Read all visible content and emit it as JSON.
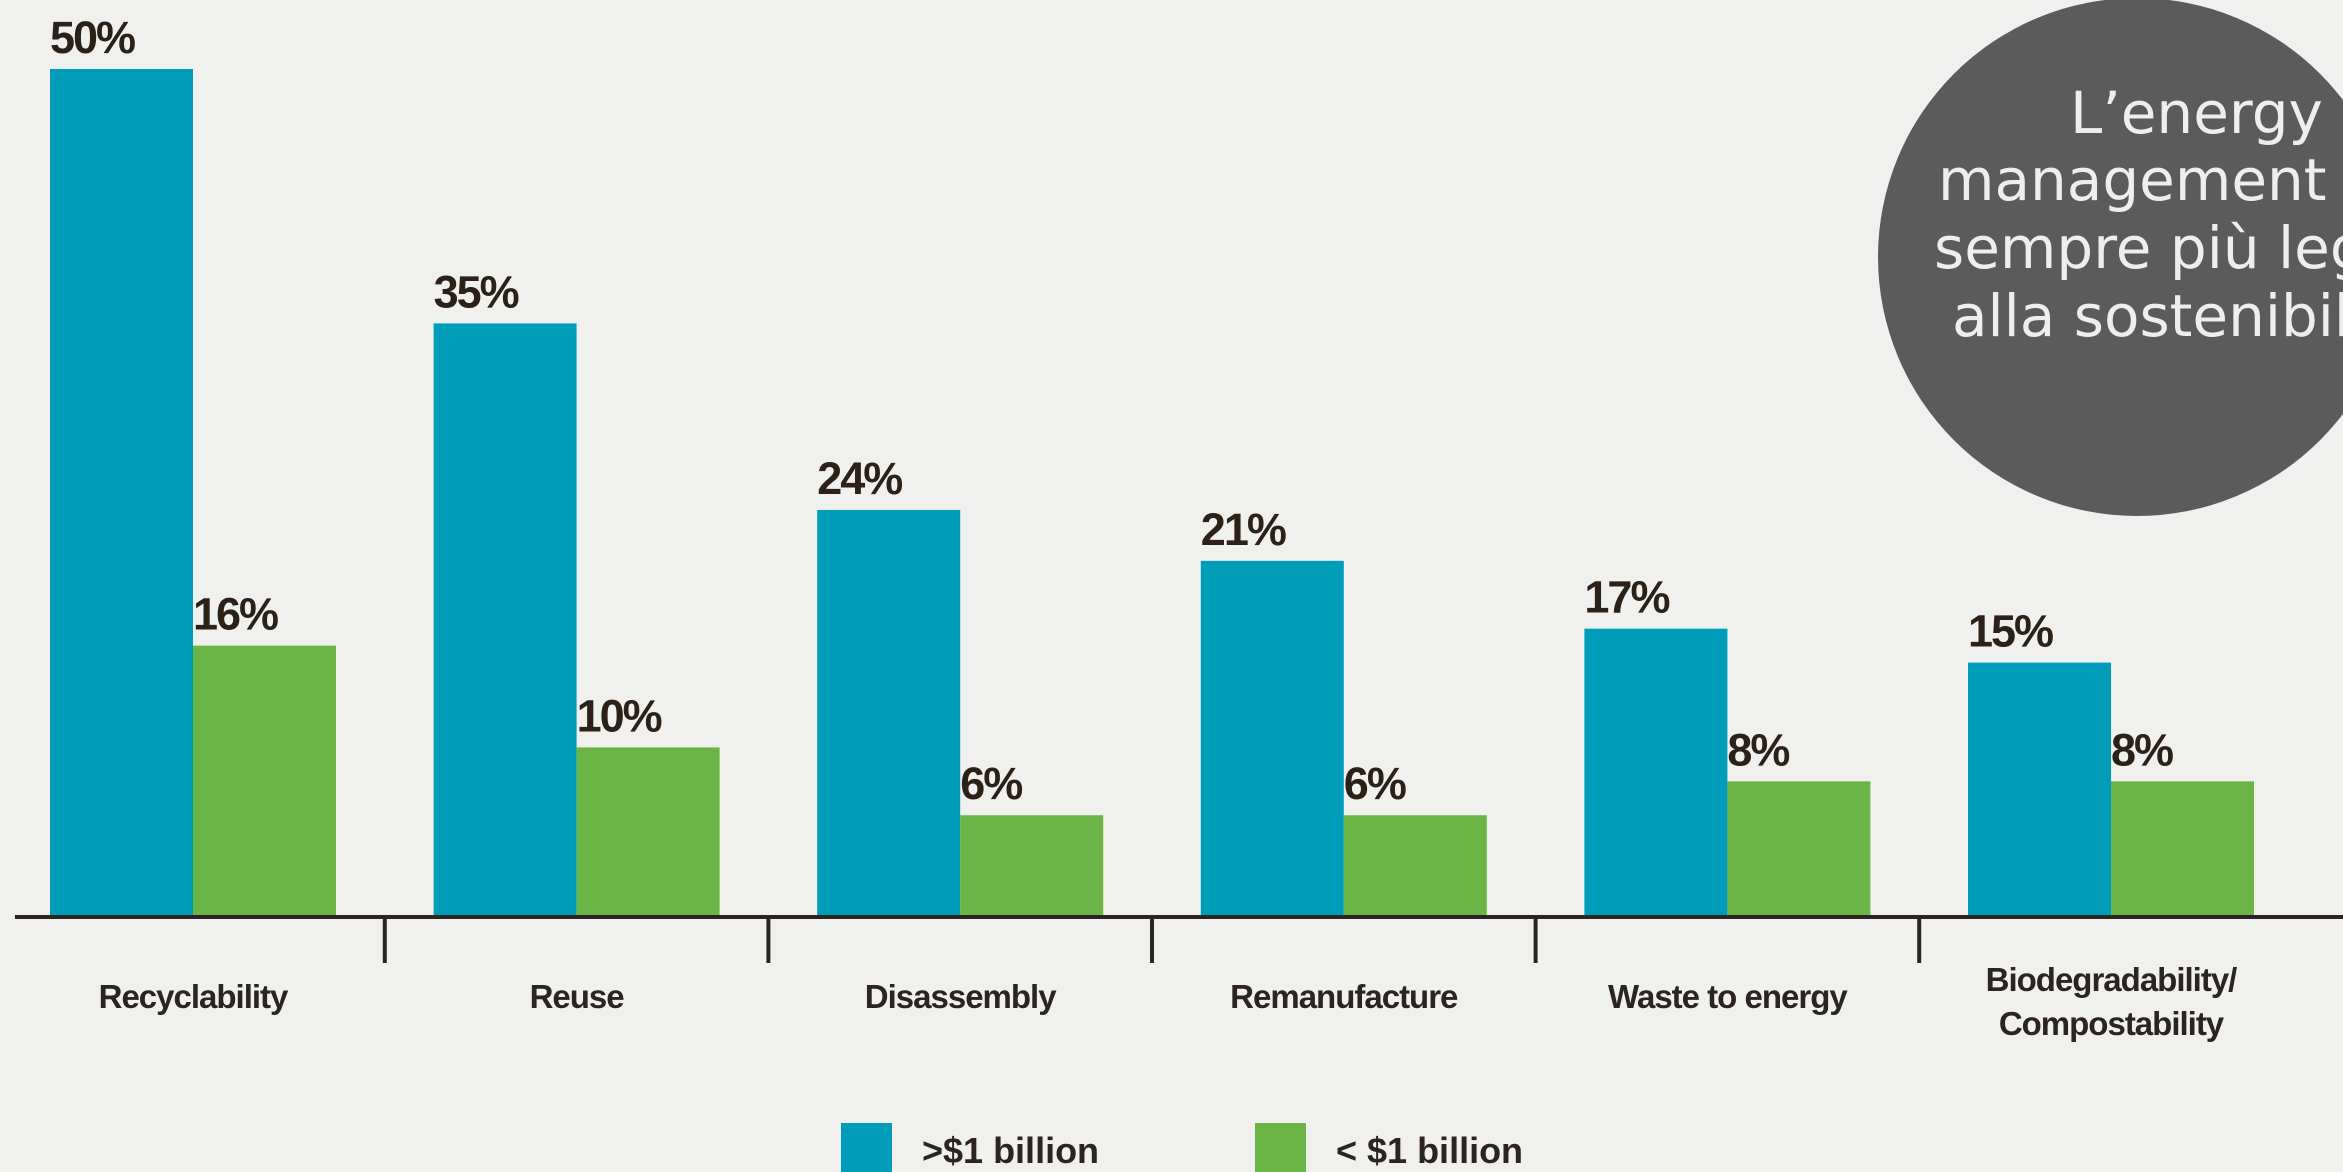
{
  "chart_data": {
    "type": "bar",
    "categories": [
      "Recyclability",
      "Reuse",
      "Disassembly",
      "Remanufacture",
      "Waste to energy",
      "Biodegradability/ Compostability"
    ],
    "series": [
      {
        "name": ">$1 billion",
        "color": "#009dbb",
        "values": [
          50,
          35,
          24,
          21,
          17,
          15
        ],
        "value_labels": [
          "50%",
          "35%",
          "24%",
          "21%",
          "17%",
          "15%"
        ]
      },
      {
        "name": "< $1 billion",
        "color": "#6ab545",
        "values": [
          16,
          10,
          6,
          6,
          8,
          8
        ],
        "value_labels": [
          "16%",
          "10%",
          "6%",
          "6%",
          "8%",
          "8%"
        ]
      }
    ],
    "ylim": [
      0,
      50
    ],
    "grid": false,
    "legend": "bottom"
  },
  "overlay": {
    "lines": [
      "L’energy",
      "management s",
      "sempre più leg",
      "alla sostenibil"
    ]
  }
}
